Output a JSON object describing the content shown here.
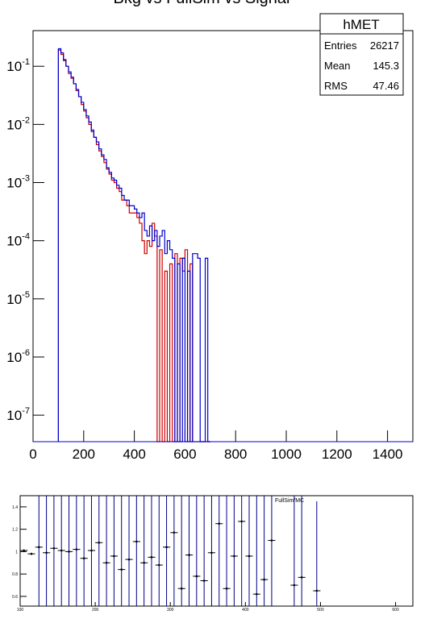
{
  "chart_data": [
    {
      "type": "histogram",
      "title": "Bkg vs FullSim vs Signal",
      "log_y": true,
      "bins": [
        100,
        110,
        120,
        130,
        140,
        150,
        160,
        170,
        180,
        190,
        200,
        210,
        220,
        230,
        240,
        250,
        260,
        270,
        280,
        290,
        300,
        310,
        320,
        330,
        340,
        350,
        360,
        370,
        380,
        390,
        400,
        410,
        420,
        430,
        440,
        450,
        460,
        470,
        480,
        490,
        500,
        510,
        520,
        530,
        540,
        550,
        560,
        570,
        580,
        590,
        600,
        610,
        620,
        630,
        640,
        650,
        660,
        670,
        680,
        690,
        700
      ],
      "series": [
        {
          "color": "#0000cc",
          "values": [
            0.2,
            0.17,
            0.13,
            0.1,
            0.08,
            0.065,
            0.05,
            0.04,
            0.03,
            0.024,
            0.018,
            0.014,
            0.011,
            0.008,
            0.006,
            0.005,
            0.0038,
            0.003,
            0.0025,
            0.0018,
            0.0015,
            0.0012,
            0.0011,
            0.0009,
            0.0008,
            0.0006,
            0.0005,
            0.0005,
            0.0004,
            0.0004,
            0.00035,
            0.0003,
            0.00025,
            0.0003,
            0.00015,
            0.00012,
            0.00018,
            0.0001,
            0.00015,
            8e-05,
            0.00012,
            0.00015,
            6e-05,
            0.0001,
            7e-05,
            5e-05,
            0,
            4e-05,
            0,
            5e-05,
            0,
            3e-05,
            0,
            6e-05,
            6e-05,
            5e-05,
            0,
            0,
            5e-05,
            0
          ]
        },
        {
          "color": "#cc0000",
          "values": [
            0.19,
            0.16,
            0.125,
            0.1,
            0.075,
            0.062,
            0.05,
            0.038,
            0.03,
            0.022,
            0.017,
            0.013,
            0.01,
            0.0075,
            0.006,
            0.0045,
            0.0035,
            0.0028,
            0.0022,
            0.0017,
            0.0014,
            0.0011,
            0.001,
            0.0008,
            0.0007,
            0.0005,
            0.0005,
            0.0004,
            0.0003,
            0.0003,
            0.0003,
            0.00025,
            0.0002,
            0.0001,
            6e-05,
            0.0001,
            8e-05,
            0.0002,
            0.00012,
            0,
            7e-05,
            0,
            3e-05,
            0,
            4e-05,
            0,
            6e-05,
            0,
            5e-05,
            3e-05,
            7e-05,
            0,
            4e-05,
            0,
            0,
            0,
            0,
            0,
            0,
            0
          ]
        }
      ],
      "xlim": [
        0,
        1500
      ],
      "xticks": [
        0,
        200,
        400,
        600,
        800,
        1000,
        1200,
        1400
      ],
      "ylim": [
        3.5e-08,
        0.41
      ],
      "yticks": [
        {
          "value": 1e-07,
          "label": "10",
          "exponent": "-7"
        },
        {
          "value": 1e-06,
          "label": "10",
          "exponent": "-6"
        },
        {
          "value": 1e-05,
          "label": "10",
          "exponent": "-5"
        },
        {
          "value": 0.0001,
          "label": "10",
          "exponent": "-4"
        },
        {
          "value": 0.001,
          "label": "10",
          "exponent": "-3"
        },
        {
          "value": 0.01,
          "label": "10",
          "exponent": "-2"
        },
        {
          "value": 0.1,
          "label": "10",
          "exponent": "-1"
        }
      ],
      "stats": {
        "name": "hMET",
        "rows": [
          [
            "Entries",
            "26217"
          ],
          [
            "Mean",
            "145.3"
          ],
          [
            "RMS",
            "47.46"
          ]
        ]
      }
    },
    {
      "type": "errorbar",
      "annotation": "FullSim/MC",
      "color": "#000000",
      "error_color": "#000088",
      "x": [
        105,
        115,
        125,
        135,
        145,
        155,
        165,
        175,
        185,
        195,
        205,
        215,
        225,
        235,
        245,
        255,
        265,
        275,
        285,
        295,
        305,
        315,
        325,
        335,
        345,
        355,
        365,
        375,
        385,
        395,
        405,
        415,
        425,
        435,
        445,
        455,
        465,
        475,
        485,
        495
      ],
      "values": [
        1.01,
        0.98,
        1.04,
        0.99,
        1.03,
        1.01,
        1.0,
        1.02,
        0.94,
        1.01,
        1.08,
        0.9,
        0.96,
        0.84,
        0.93,
        1.09,
        0.9,
        0.95,
        0.88,
        1.04,
        1.17,
        0.67,
        0.97,
        0.78,
        0.74,
        0.99,
        1.25,
        0.67,
        0.96,
        1.27,
        0.96,
        0.62,
        0.75,
        1.1,
        null,
        null,
        0.7,
        0.77,
        null,
        0.65
      ],
      "errors": [
        0.01,
        0.01,
        1,
        1,
        1,
        1,
        1,
        1,
        1,
        1,
        1,
        1,
        1,
        1,
        1,
        1,
        1,
        1,
        1,
        1,
        1,
        1,
        1,
        1,
        1,
        1,
        1,
        1,
        1,
        1,
        1,
        1,
        1,
        1,
        null,
        null,
        1,
        1,
        null,
        0.8
      ],
      "xlim": [
        100,
        623
      ],
      "xticks": [
        100,
        200,
        300,
        400,
        500,
        600
      ],
      "ylim": [
        0.513,
        1.5
      ],
      "yticks": [
        0.6,
        0.8,
        1,
        1.2,
        1.4
      ]
    }
  ]
}
